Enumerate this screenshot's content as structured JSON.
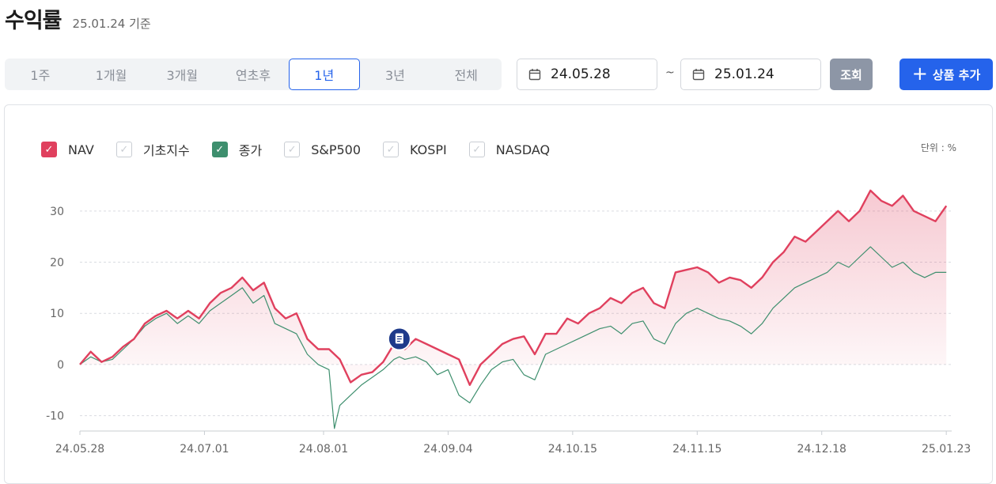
{
  "header": {
    "title": "수익률",
    "as_of": "25.01.24 기준"
  },
  "period_tabs": [
    {
      "label": "1주",
      "active": false
    },
    {
      "label": "1개월",
      "active": false
    },
    {
      "label": "3개월",
      "active": false
    },
    {
      "label": "연초후",
      "active": false
    },
    {
      "label": "1년",
      "active": true
    },
    {
      "label": "3년",
      "active": false
    },
    {
      "label": "전체",
      "active": false
    }
  ],
  "date_range": {
    "start": "24.05.28",
    "end": "25.01.24",
    "separator": "~",
    "start_icon": "calendar-icon",
    "end_icon": "calendar-icon"
  },
  "buttons": {
    "query_label": "조회",
    "add_label": "상품 추가",
    "add_icon": "plus-icon"
  },
  "colors": {
    "accent": "#2563eb",
    "nav": "#e0405e",
    "close": "#3e8f6e",
    "query_btn": "#8d96a6"
  },
  "legend": [
    {
      "label": "NAV",
      "checked": true,
      "color": "#e0405e"
    },
    {
      "label": "기초지수",
      "checked": false,
      "color": "#c9cdd3"
    },
    {
      "label": "종가",
      "checked": true,
      "color": "#3e8f6e"
    },
    {
      "label": "S&P500",
      "checked": false,
      "color": "#c9cdd3"
    },
    {
      "label": "KOSPI",
      "checked": false,
      "color": "#c9cdd3"
    },
    {
      "label": "NASDAQ",
      "checked": false,
      "color": "#c9cdd3"
    }
  ],
  "unit_label": "단위 : %",
  "chart_data": {
    "type": "line",
    "xlabel": "",
    "ylabel": "",
    "ylim": [
      -13,
      36
    ],
    "yticks": [
      30,
      20,
      10,
      0,
      -10
    ],
    "xticks": [
      "24.05.28",
      "24.07.01",
      "24.08.01",
      "24.09.04",
      "24.10.15",
      "24.11.15",
      "24.12.18",
      "25.01.23"
    ],
    "x_range_index": [
      0,
      161
    ],
    "xtick_index": [
      0,
      23,
      45,
      68,
      91,
      114,
      137,
      160
    ],
    "grid": true,
    "legend_position": "top-left",
    "marker": {
      "index": 59,
      "series": "NAV",
      "icon": "document-icon"
    },
    "series": [
      {
        "name": "NAV",
        "color": "#e0405e",
        "area": true,
        "points": [
          [
            0,
            0
          ],
          [
            2,
            2.5
          ],
          [
            4,
            0.5
          ],
          [
            6,
            1.5
          ],
          [
            8,
            3.5
          ],
          [
            10,
            5
          ],
          [
            12,
            8
          ],
          [
            14,
            9.5
          ],
          [
            16,
            10.5
          ],
          [
            18,
            9
          ],
          [
            20,
            10.5
          ],
          [
            22,
            9
          ],
          [
            24,
            12
          ],
          [
            26,
            14
          ],
          [
            28,
            15
          ],
          [
            30,
            17
          ],
          [
            32,
            14.5
          ],
          [
            34,
            16
          ],
          [
            36,
            11
          ],
          [
            38,
            9
          ],
          [
            40,
            10
          ],
          [
            42,
            5
          ],
          [
            44,
            3
          ],
          [
            46,
            3
          ],
          [
            48,
            1
          ],
          [
            50,
            -3.5
          ],
          [
            52,
            -2
          ],
          [
            54,
            -1.5
          ],
          [
            56,
            0.5
          ],
          [
            58,
            4
          ],
          [
            59,
            5
          ],
          [
            60,
            3
          ],
          [
            62,
            5
          ],
          [
            64,
            4
          ],
          [
            66,
            3
          ],
          [
            68,
            2
          ],
          [
            70,
            1
          ],
          [
            72,
            -4
          ],
          [
            74,
            0
          ],
          [
            76,
            2
          ],
          [
            78,
            4
          ],
          [
            80,
            5
          ],
          [
            82,
            5.5
          ],
          [
            84,
            2
          ],
          [
            86,
            6
          ],
          [
            88,
            6
          ],
          [
            90,
            9
          ],
          [
            92,
            8
          ],
          [
            94,
            10
          ],
          [
            96,
            11
          ],
          [
            98,
            13
          ],
          [
            100,
            12
          ],
          [
            102,
            14
          ],
          [
            104,
            15
          ],
          [
            106,
            12
          ],
          [
            108,
            11
          ],
          [
            110,
            18
          ],
          [
            112,
            18.5
          ],
          [
            114,
            19
          ],
          [
            116,
            18
          ],
          [
            118,
            16
          ],
          [
            120,
            17
          ],
          [
            122,
            16.5
          ],
          [
            124,
            15
          ],
          [
            126,
            17
          ],
          [
            128,
            20
          ],
          [
            130,
            22
          ],
          [
            132,
            25
          ],
          [
            134,
            24
          ],
          [
            136,
            26
          ],
          [
            138,
            28
          ],
          [
            140,
            30
          ],
          [
            142,
            28
          ],
          [
            144,
            30
          ],
          [
            146,
            34
          ],
          [
            148,
            32
          ],
          [
            150,
            31
          ],
          [
            152,
            33
          ],
          [
            154,
            30
          ],
          [
            156,
            29
          ],
          [
            158,
            28
          ],
          [
            160,
            31
          ]
        ]
      },
      {
        "name": "종가",
        "color": "#3e8f6e",
        "area": false,
        "points": [
          [
            0,
            0
          ],
          [
            2,
            1.5
          ],
          [
            4,
            0.5
          ],
          [
            6,
            1
          ],
          [
            8,
            3
          ],
          [
            10,
            5
          ],
          [
            12,
            7.5
          ],
          [
            14,
            9
          ],
          [
            16,
            10
          ],
          [
            18,
            8
          ],
          [
            20,
            9.5
          ],
          [
            22,
            8
          ],
          [
            24,
            10.5
          ],
          [
            26,
            12
          ],
          [
            28,
            13.5
          ],
          [
            30,
            15
          ],
          [
            32,
            12
          ],
          [
            34,
            13.5
          ],
          [
            36,
            8
          ],
          [
            38,
            7
          ],
          [
            40,
            6
          ],
          [
            42,
            2
          ],
          [
            44,
            0
          ],
          [
            46,
            -1
          ],
          [
            47,
            -12.5
          ],
          [
            48,
            -8
          ],
          [
            50,
            -6
          ],
          [
            52,
            -4
          ],
          [
            54,
            -2.5
          ],
          [
            56,
            -1
          ],
          [
            58,
            1
          ],
          [
            59,
            1.5
          ],
          [
            60,
            1
          ],
          [
            62,
            1.5
          ],
          [
            64,
            0.5
          ],
          [
            66,
            -2
          ],
          [
            68,
            -1
          ],
          [
            70,
            -6
          ],
          [
            72,
            -7.5
          ],
          [
            74,
            -4
          ],
          [
            76,
            -1
          ],
          [
            78,
            0.5
          ],
          [
            80,
            1
          ],
          [
            82,
            -2
          ],
          [
            84,
            -3
          ],
          [
            86,
            2
          ],
          [
            88,
            3
          ],
          [
            90,
            4
          ],
          [
            92,
            5
          ],
          [
            94,
            6
          ],
          [
            96,
            7
          ],
          [
            98,
            7.5
          ],
          [
            100,
            6
          ],
          [
            102,
            8
          ],
          [
            104,
            8.5
          ],
          [
            106,
            5
          ],
          [
            108,
            4
          ],
          [
            110,
            8
          ],
          [
            112,
            10
          ],
          [
            114,
            11
          ],
          [
            116,
            10
          ],
          [
            118,
            9
          ],
          [
            120,
            8.5
          ],
          [
            122,
            7.5
          ],
          [
            124,
            6
          ],
          [
            126,
            8
          ],
          [
            128,
            11
          ],
          [
            130,
            13
          ],
          [
            132,
            15
          ],
          [
            134,
            16
          ],
          [
            136,
            17
          ],
          [
            138,
            18
          ],
          [
            140,
            20
          ],
          [
            142,
            19
          ],
          [
            144,
            21
          ],
          [
            146,
            23
          ],
          [
            148,
            21
          ],
          [
            150,
            19
          ],
          [
            152,
            20
          ],
          [
            154,
            18
          ],
          [
            156,
            17
          ],
          [
            158,
            18
          ],
          [
            160,
            18
          ]
        ]
      }
    ]
  }
}
